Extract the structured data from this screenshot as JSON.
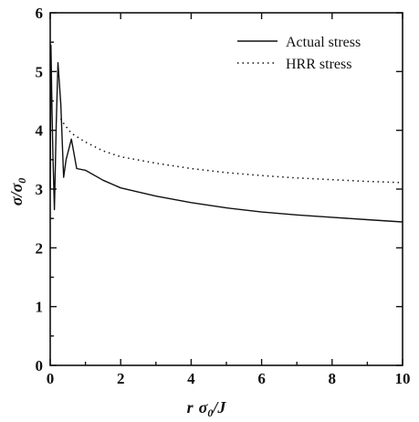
{
  "chart_data": {
    "type": "line",
    "title": "",
    "xlabel": {
      "r": "r",
      "sigma": "σ",
      "sub": "0",
      "rest": "/J"
    },
    "ylabel": {
      "sigma": "σ",
      "slash": "/",
      "sigma2": "σ",
      "sub": "0"
    },
    "xlim": [
      0,
      10
    ],
    "ylim": [
      0,
      6
    ],
    "xticks": [
      0,
      2,
      4,
      6,
      8,
      10
    ],
    "yticks": [
      0,
      1,
      2,
      3,
      4,
      5,
      6
    ],
    "grid": false,
    "legend": {
      "position": "top-right"
    },
    "series": [
      {
        "name": "Actual stress",
        "style": "solid",
        "color": "#111111",
        "x": [
          0.0,
          0.02,
          0.05,
          0.08,
          0.12,
          0.17,
          0.22,
          0.3,
          0.38,
          0.45,
          0.6,
          0.75,
          1.0,
          1.5,
          2.0,
          3.0,
          4.0,
          5.0,
          6.0,
          7.0,
          8.0,
          9.0,
          10.0
        ],
        "y": [
          3.0,
          5.45,
          4.4,
          3.5,
          2.65,
          4.1,
          5.15,
          4.45,
          3.2,
          3.5,
          3.85,
          3.35,
          3.32,
          3.15,
          3.02,
          2.88,
          2.77,
          2.68,
          2.61,
          2.56,
          2.52,
          2.48,
          2.44
        ]
      },
      {
        "name": "HRR stress",
        "style": "dotted",
        "color": "#111111",
        "x": [
          0.3,
          0.4,
          0.6,
          1.0,
          1.5,
          2.0,
          3.0,
          4.0,
          5.0,
          6.0,
          7.0,
          8.0,
          9.0,
          10.0
        ],
        "y": [
          4.2,
          4.1,
          3.95,
          3.8,
          3.65,
          3.55,
          3.44,
          3.35,
          3.28,
          3.23,
          3.19,
          3.16,
          3.13,
          3.11
        ]
      }
    ]
  }
}
